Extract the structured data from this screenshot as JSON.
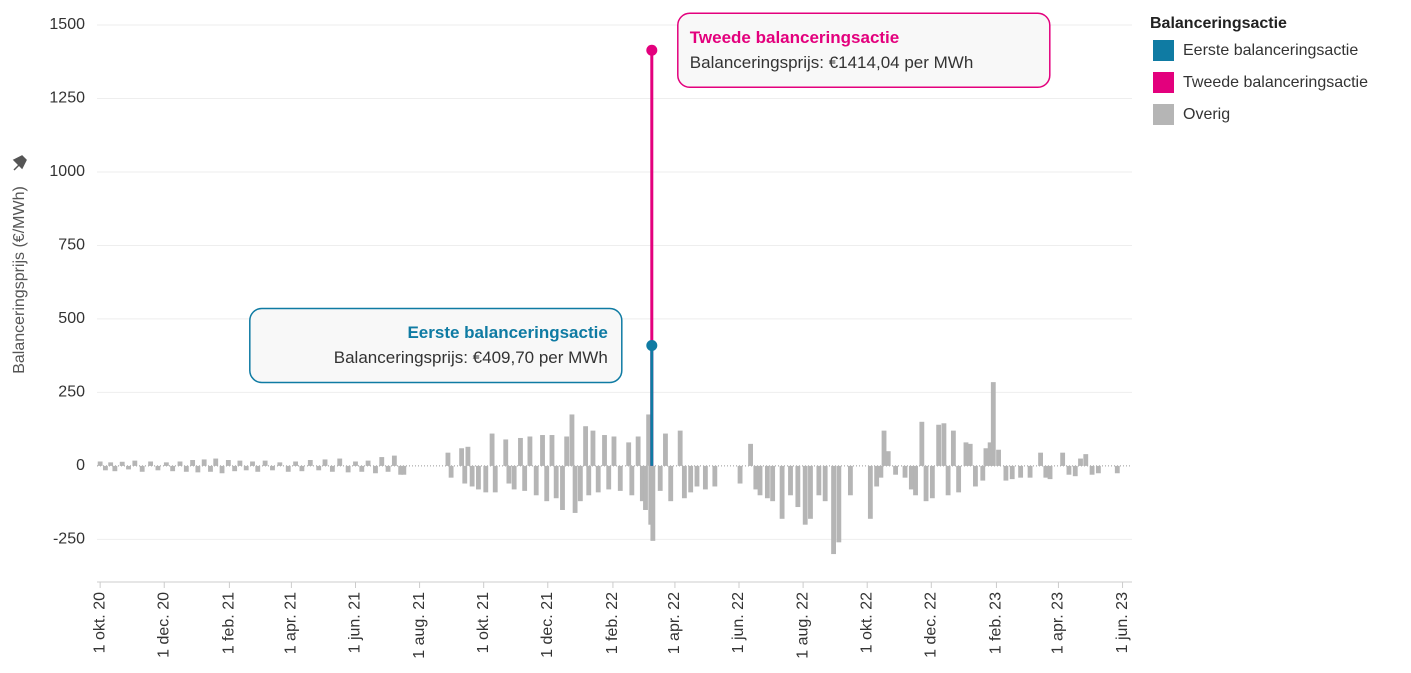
{
  "chart_data": {
    "type": "bar",
    "y_label": "Balanceringsprijs (€/MWh)",
    "legend_title": "Balanceringsactie",
    "legend": "top-right",
    "grid": true,
    "ylim": [
      -395,
      1500
    ],
    "yticks": [
      -250,
      0,
      250,
      500,
      750,
      1000,
      1250,
      1500
    ],
    "xlim": [
      "2020-09-28",
      "2023-06-10"
    ],
    "xticks": [
      {
        "value": "2020-10-01",
        "label": "1 okt. 20"
      },
      {
        "value": "2020-12-01",
        "label": "1 dec. 20"
      },
      {
        "value": "2021-02-01",
        "label": "1 feb. 21"
      },
      {
        "value": "2021-04-01",
        "label": "1 apr. 21"
      },
      {
        "value": "2021-06-01",
        "label": "1 jun. 21"
      },
      {
        "value": "2021-08-01",
        "label": "1 aug. 21"
      },
      {
        "value": "2021-10-01",
        "label": "1 okt. 21"
      },
      {
        "value": "2021-12-01",
        "label": "1 dec. 21"
      },
      {
        "value": "2022-02-01",
        "label": "1 feb. 22"
      },
      {
        "value": "2022-04-01",
        "label": "1 apr. 22"
      },
      {
        "value": "2022-06-01",
        "label": "1 jun. 22"
      },
      {
        "value": "2022-08-01",
        "label": "1 aug. 22"
      },
      {
        "value": "2022-10-01",
        "label": "1 okt. 22"
      },
      {
        "value": "2022-12-01",
        "label": "1 dec. 22"
      },
      {
        "value": "2023-02-01",
        "label": "1 feb. 23"
      },
      {
        "value": "2023-04-01",
        "label": "1 apr. 23"
      },
      {
        "value": "2023-06-01",
        "label": "1 jun. 23"
      }
    ],
    "series": [
      {
        "name": "Eerste balanceringsactie",
        "color": "#0f7ba3",
        "x": [
          "2022-03-10"
        ],
        "values": [
          409.7
        ]
      },
      {
        "name": "Tweede balanceringsactie",
        "color": "#e3007d",
        "x": [
          "2022-03-10"
        ],
        "values": [
          1414.04
        ]
      },
      {
        "name": "Overig",
        "color": "#b5b5b5",
        "x": [
          "2020-10-01",
          "2020-10-06",
          "2020-10-11",
          "2020-10-15",
          "2020-10-22",
          "2020-10-28",
          "2020-11-03",
          "2020-11-10",
          "2020-11-18",
          "2020-11-25",
          "2020-12-03",
          "2020-12-09",
          "2020-12-16",
          "2020-12-22",
          "2020-12-28",
          "2021-01-02",
          "2021-01-08",
          "2021-01-14",
          "2021-01-19",
          "2021-01-25",
          "2021-01-31",
          "2021-02-06",
          "2021-02-11",
          "2021-02-17",
          "2021-02-23",
          "2021-02-28",
          "2021-03-07",
          "2021-03-14",
          "2021-03-21",
          "2021-03-29",
          "2021-04-05",
          "2021-04-11",
          "2021-04-19",
          "2021-04-27",
          "2021-05-03",
          "2021-05-10",
          "2021-05-17",
          "2021-05-25",
          "2021-06-01",
          "2021-06-07",
          "2021-06-13",
          "2021-06-20",
          "2021-06-26",
          "2021-07-02",
          "2021-07-08",
          "2021-07-14",
          "2021-07-17",
          "2021-08-28",
          "2021-08-31",
          "2021-09-10",
          "2021-09-13",
          "2021-09-16",
          "2021-09-20",
          "2021-09-26",
          "2021-10-03",
          "2021-10-09",
          "2021-10-12",
          "2021-10-22",
          "2021-10-25",
          "2021-10-30",
          "2021-11-05",
          "2021-11-09",
          "2021-11-14",
          "2021-11-20",
          "2021-11-26",
          "2021-11-30",
          "2021-12-05",
          "2021-12-09",
          "2021-12-15",
          "2021-12-19",
          "2021-12-24",
          "2021-12-27",
          "2022-01-01",
          "2022-01-06",
          "2022-01-09",
          "2022-01-13",
          "2022-01-18",
          "2022-01-24",
          "2022-01-28",
          "2022-02-02",
          "2022-02-08",
          "2022-02-16",
          "2022-02-19",
          "2022-02-25",
          "2022-03-01",
          "2022-03-04",
          "2022-03-07",
          "2022-03-09",
          "2022-03-11",
          "2022-03-18",
          "2022-03-23",
          "2022-03-28",
          "2022-04-06",
          "2022-04-10",
          "2022-04-16",
          "2022-04-22",
          "2022-04-30",
          "2022-05-09",
          "2022-06-02",
          "2022-06-12",
          "2022-06-17",
          "2022-06-21",
          "2022-06-28",
          "2022-07-03",
          "2022-07-12",
          "2022-07-20",
          "2022-07-27",
          "2022-08-03",
          "2022-08-08",
          "2022-08-16",
          "2022-08-22",
          "2022-08-30",
          "2022-09-04",
          "2022-09-15",
          "2022-10-04",
          "2022-10-10",
          "2022-10-14",
          "2022-10-17",
          "2022-10-21",
          "2022-10-28",
          "2022-11-06",
          "2022-11-12",
          "2022-11-16",
          "2022-11-22",
          "2022-11-26",
          "2022-12-02",
          "2022-12-08",
          "2022-12-13",
          "2022-12-17",
          "2022-12-22",
          "2022-12-27",
          "2023-01-03",
          "2023-01-07",
          "2023-01-12",
          "2023-01-19",
          "2023-01-22",
          "2023-01-26",
          "2023-01-29",
          "2023-02-03",
          "2023-02-10",
          "2023-02-16",
          "2023-02-24",
          "2023-03-05",
          "2023-03-15",
          "2023-03-20",
          "2023-03-24",
          "2023-04-05",
          "2023-04-11",
          "2023-04-17",
          "2023-04-22",
          "2023-04-27",
          "2023-05-03",
          "2023-05-09",
          "2023-05-27"
        ],
        "values": [
          15,
          -15,
          12,
          -18,
          14,
          -12,
          18,
          -20,
          15,
          -15,
          12,
          -18,
          15,
          -20,
          20,
          -22,
          22,
          -20,
          25,
          -25,
          20,
          -18,
          18,
          -15,
          15,
          -20,
          18,
          -15,
          12,
          -20,
          15,
          -18,
          20,
          -15,
          22,
          -20,
          25,
          -22,
          15,
          -20,
          18,
          -25,
          30,
          -20,
          35,
          -30,
          -30,
          45,
          -40,
          60,
          -60,
          65,
          -70,
          -80,
          -90,
          110,
          -90,
          90,
          -60,
          -80,
          95,
          -85,
          100,
          -100,
          105,
          -120,
          105,
          -110,
          -150,
          100,
          175,
          -160,
          -120,
          135,
          -100,
          120,
          -90,
          105,
          -80,
          100,
          -85,
          80,
          -100,
          100,
          -120,
          -150,
          175,
          -200,
          -255,
          -85,
          110,
          -120,
          120,
          -110,
          -90,
          -70,
          -80,
          -70,
          -60,
          75,
          -80,
          -100,
          -110,
          -120,
          -180,
          -100,
          -140,
          -200,
          -180,
          -100,
          -120,
          -300,
          -260,
          -100,
          -180,
          -70,
          -40,
          120,
          50,
          -30,
          -40,
          -80,
          -100,
          150,
          -120,
          -110,
          140,
          145,
          -100,
          120,
          -90,
          80,
          75,
          -70,
          -50,
          60,
          80,
          285,
          55,
          -50,
          -45,
          -40,
          -40,
          45,
          -40,
          -45,
          45,
          -30,
          -35,
          25,
          40,
          -30,
          -25,
          -25
        ]
      }
    ],
    "annotations": [
      {
        "title": "Eerste balanceringsactie",
        "text": "Balanceringsprijs: €409,70 per MWh"
      },
      {
        "title": "Tweede balanceringsactie",
        "text": "Balanceringsprijs: €1414,04 per MWh"
      }
    ]
  }
}
